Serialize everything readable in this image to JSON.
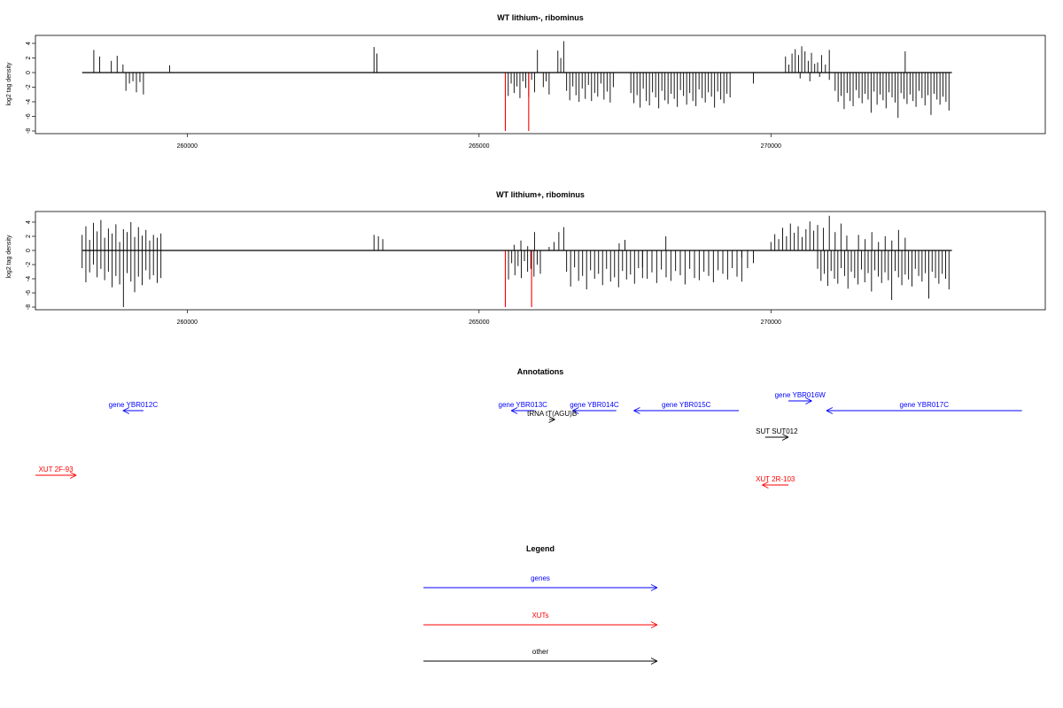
{
  "figure": {
    "annotations_title": "Annotations",
    "legend_title": "Legend"
  },
  "colors": {
    "gene": "#0000ff",
    "xut": "#ff0000",
    "other": "#000000",
    "signal": "#000000",
    "highlight": "#ff0000"
  },
  "chart_data": [
    {
      "type": "bar",
      "title": "WT lithium-, ribominus",
      "ylabel": "log2 tag density",
      "xlim": [
        257400,
        274700
      ],
      "ylim": [
        -8,
        5
      ],
      "yticks": [
        -8,
        -6,
        -4,
        -2,
        0,
        2,
        4
      ],
      "xticks": [
        260000,
        265000,
        270000
      ],
      "xtick_labels": [
        "260000",
        "265000",
        "270000"
      ],
      "grid": false,
      "signal_x_range": [
        258200,
        273100
      ],
      "segments": [
        {
          "start": 258400,
          "end": 258500,
          "values": [
            3.1,
            2.2
          ]
        },
        {
          "start": 258700,
          "end": 258800,
          "values": [
            1.6,
            0,
            2.3
          ]
        },
        {
          "start": 258900,
          "end": 258900,
          "values": [
            1.1
          ]
        },
        {
          "start": 258950,
          "end": 259250,
          "values": [
            -2.5,
            -1.5,
            -1.2,
            -2.7,
            -1.3,
            -3.0
          ]
        },
        {
          "start": 259700,
          "end": 259700,
          "values": [
            1.0
          ]
        },
        {
          "start": 263200,
          "end": 263250,
          "values": [
            3.5,
            2.6
          ]
        },
        {
          "start": 265500,
          "end": 265950,
          "values": [
            -3.2,
            -1.5,
            -2.8,
            -1.9,
            -3.5,
            -1.2,
            -2.1,
            -3.3,
            -1.0,
            -2.7
          ]
        },
        {
          "start": 266100,
          "end": 266200,
          "values": [
            -2.0,
            -1.2,
            -3.0
          ]
        },
        {
          "start": 266000,
          "end": 266000,
          "values": [
            3.1
          ]
        },
        {
          "start": 266350,
          "end": 266450,
          "values": [
            3.0,
            2.0,
            4.3
          ]
        },
        {
          "start": 266500,
          "end": 267300,
          "values": [
            -2.5,
            -3.8,
            -1.9,
            -3.1,
            -4.0,
            -2.2,
            -3.6,
            -1.7,
            -3.9,
            -2.8,
            -3.3,
            -1.5,
            -3.7,
            -2.6,
            -4.1,
            -2.0
          ]
        },
        {
          "start": 267600,
          "end": 269300,
          "values": [
            -2.8,
            -4.2,
            -3.1,
            -4.8,
            -2.2,
            -3.9,
            -4.5,
            -2.7,
            -3.4,
            -4.9,
            -2.5,
            -3.8,
            -4.3,
            -2.9,
            -3.6,
            -4.7,
            -2.4,
            -3.2,
            -4.4,
            -2.8,
            -3.9,
            -4.6,
            -2.3,
            -3.5,
            -4.1,
            -2.7,
            -3.3,
            -4.8,
            -2.6,
            -3.7,
            -4.2,
            -2.9,
            -3.4
          ]
        },
        {
          "start": 269700,
          "end": 269700,
          "values": [
            -1.5
          ]
        },
        {
          "start": 270250,
          "end": 270750,
          "values": [
            2.2,
            1.1,
            2.6,
            3.2,
            2.4,
            3.6,
            2.9,
            1.6,
            2.7,
            1.2
          ]
        },
        {
          "start": 270800,
          "end": 271000,
          "values": [
            1.4,
            2.4,
            1.1,
            3.1
          ]
        },
        {
          "start": 270500,
          "end": 271000,
          "values": [
            -0.8,
            -1.2,
            -0.6,
            -1.0
          ]
        },
        {
          "start": 271100,
          "end": 273050,
          "values": [
            -2.5,
            -4.0,
            -3.2,
            -5.0,
            -2.8,
            -3.9,
            -4.6,
            -2.4,
            -3.5,
            -4.2,
            -2.9,
            -3.7,
            -5.5,
            -2.6,
            -4.4,
            -3.0,
            -3.8,
            -4.9,
            -2.7,
            -3.4,
            -4.1,
            -6.2,
            -2.8,
            -3.6,
            -4.3,
            -3.0,
            -3.9,
            -4.7,
            -2.5,
            -3.5,
            -4.5,
            -3.1,
            -5.8,
            -2.9,
            -3.7,
            -4.4,
            -3.3,
            -4.0,
            -5.2
          ]
        },
        {
          "start": 272300,
          "end": 272300,
          "values": [
            2.9
          ]
        }
      ],
      "highlights": [
        {
          "x": 265450,
          "value": -8
        },
        {
          "x": 265850,
          "value": -8
        }
      ]
    },
    {
      "type": "bar",
      "title": "WT lithium+, ribominus",
      "ylabel": "log2 tag density",
      "xlim": [
        257400,
        274700
      ],
      "ylim": [
        -8,
        5
      ],
      "yticks": [
        -8,
        -6,
        -4,
        -2,
        0,
        2,
        4
      ],
      "xticks": [
        260000,
        265000,
        270000
      ],
      "xtick_labels": [
        "260000",
        "265000",
        "270000"
      ],
      "grid": false,
      "signal_x_range": [
        258200,
        273100
      ],
      "segments": [
        {
          "start": 258200,
          "end": 259550,
          "values": [
            2.2,
            3.4,
            1.5,
            3.9,
            2.7,
            4.3,
            1.8,
            3.1,
            2.4,
            3.7,
            1.2,
            3.0,
            2.6,
            4.0,
            1.9,
            3.3,
            2.1,
            2.9,
            1.4,
            2.2,
            1.8,
            2.4
          ]
        },
        {
          "start": 258200,
          "end": 259550,
          "values": [
            -2.5,
            -4.5,
            -3.1,
            -2.0,
            -3.8,
            -2.6,
            -4.2,
            -3.0,
            -5.2,
            -3.6,
            -4.8,
            -8.0,
            -3.2,
            -4.4,
            -5.9,
            -3.7,
            -4.9,
            -2.8,
            -4.1,
            -3.5,
            -4.6,
            -3.9
          ]
        },
        {
          "start": 263200,
          "end": 263350,
          "values": [
            2.2,
            2.0,
            1.6
          ]
        },
        {
          "start": 265450,
          "end": 266050,
          "values": [
            -2.8,
            -4.1,
            -1.8,
            -3.5,
            -2.2,
            -3.9,
            -1.5,
            -3.0,
            -2.6,
            -3.7,
            -2.0,
            -3.3
          ]
        },
        {
          "start": 265600,
          "end": 265950,
          "values": [
            0.8,
            1.4,
            0.6,
            2.6
          ]
        },
        {
          "start": 266200,
          "end": 266450,
          "values": [
            0.5,
            1.2,
            2.6,
            3.3
          ]
        },
        {
          "start": 266500,
          "end": 267800,
          "values": [
            -3.0,
            -5.1,
            -2.4,
            -4.3,
            -3.6,
            -5.5,
            -2.8,
            -4.0,
            -3.3,
            -4.9,
            -2.6,
            -4.4,
            -3.8,
            -5.2,
            -2.9,
            -4.1,
            -3.4,
            -4.7,
            -2.5,
            -3.9
          ]
        },
        {
          "start": 267400,
          "end": 267500,
          "values": [
            1.0,
            1.5
          ]
        },
        {
          "start": 267800,
          "end": 269500,
          "values": [
            -2.4,
            -4.0,
            -3.1,
            -4.6,
            -2.7,
            -3.8,
            -4.3,
            -2.9,
            -3.5,
            -4.8,
            -2.6,
            -3.9,
            -4.2,
            -3.0,
            -3.6,
            -4.5,
            -2.8,
            -3.3,
            -4.1,
            -2.5,
            -3.7,
            -4.4
          ]
        },
        {
          "start": 268200,
          "end": 268200,
          "values": [
            2.0
          ]
        },
        {
          "start": 269500,
          "end": 269700,
          "values": [
            -1.0,
            -2.5,
            -1.8
          ]
        },
        {
          "start": 270000,
          "end": 270800,
          "values": [
            1.2,
            2.3,
            1.6,
            3.2,
            2.0,
            3.8,
            2.5,
            3.4,
            1.9,
            3.0,
            4.1,
            2.8,
            3.6
          ]
        },
        {
          "start": 270900,
          "end": 271300,
          "values": [
            3.2,
            4.9,
            2.6,
            3.8,
            2.1
          ]
        },
        {
          "start": 270800,
          "end": 273050,
          "values": [
            -2.6,
            -4.3,
            -3.3,
            -5.0,
            -2.9,
            -4.0,
            -4.7,
            -2.5,
            -3.6,
            -5.4,
            -3.0,
            -3.9,
            -4.8,
            -2.7,
            -4.5,
            -3.2,
            -5.8,
            -2.8,
            -3.7,
            -4.6,
            -3.1,
            -4.2,
            -7.0,
            -2.9,
            -3.8,
            -4.9,
            -3.4,
            -4.1,
            -5.1,
            -2.6,
            -3.6,
            -4.4,
            -3.2,
            -6.8,
            -3.0,
            -3.9,
            -4.7,
            -3.3,
            -4.0,
            -5.5
          ]
        },
        {
          "start": 271500,
          "end": 272300,
          "values": [
            2.2,
            1.6,
            2.6,
            1.2,
            2.0,
            1.4,
            2.9,
            1.8
          ]
        }
      ],
      "highlights": [
        {
          "x": 265450,
          "value": -8
        },
        {
          "x": 265900,
          "value": -8
        }
      ]
    }
  ],
  "annotations": [
    {
      "label": "gene YBR012C",
      "kind": "gene",
      "direction": "reverse",
      "start": 258900,
      "end": 259250,
      "row": "genes"
    },
    {
      "label": "gene YBR013C",
      "kind": "gene",
      "direction": "reverse",
      "start": 265550,
      "end": 265950,
      "row": "genes"
    },
    {
      "label": "gene YBR014C",
      "kind": "gene",
      "direction": "reverse",
      "start": 266600,
      "end": 267350,
      "row": "genes"
    },
    {
      "label": "gene YBR015C",
      "kind": "gene",
      "direction": "reverse",
      "start": 267650,
      "end": 269450,
      "row": "genes"
    },
    {
      "label": "gene YBR016W",
      "kind": "gene",
      "direction": "forward",
      "start": 270300,
      "end": 270700,
      "row": "genes-upper"
    },
    {
      "label": "gene YBR017C",
      "kind": "gene",
      "direction": "reverse",
      "start": 270950,
      "end": 274300,
      "row": "genes"
    },
    {
      "label": "tRNA tT(AGU)B",
      "kind": "other",
      "direction": "forward",
      "start": 266200,
      "end": 266300,
      "row": "trna"
    },
    {
      "label": "SUT SUT012",
      "kind": "other",
      "direction": "forward",
      "start": 269900,
      "end": 270300,
      "row": "sut"
    },
    {
      "label": "XUT 2F-93",
      "kind": "xut",
      "direction": "forward",
      "start": 257400,
      "end": 258100,
      "row": "xut-left"
    },
    {
      "label": "XUT 2R-103",
      "kind": "xut",
      "direction": "reverse",
      "start": 269850,
      "end": 270300,
      "row": "xut-right"
    }
  ],
  "legend": [
    {
      "label": "genes",
      "kind": "gene"
    },
    {
      "label": "XUTs",
      "kind": "xut"
    },
    {
      "label": "other",
      "kind": "other"
    }
  ]
}
